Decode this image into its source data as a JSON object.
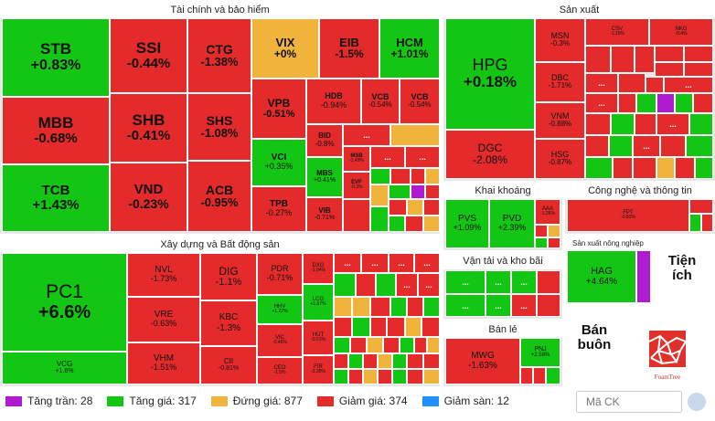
{
  "sectors": {
    "finance": "Tài chính và bảo hiểm",
    "production": "Sản xuất",
    "construction": "Xây dựng và Bất động sản",
    "mining": "Khai khoáng",
    "tech": "Công nghệ và thông tin",
    "agri": "Sản xuất nông nghiệp",
    "transport": "Vận tải và kho bãi",
    "retail": "Bán lẻ",
    "utilities": "Tiện ích",
    "wholesale": "Bán buôn"
  },
  "tiles": {
    "STB": {
      "sym": "STB",
      "pct": "+0.83%"
    },
    "MBB": {
      "sym": "MBB",
      "pct": "-0.68%"
    },
    "TCB": {
      "sym": "TCB",
      "pct": "+1.43%"
    },
    "SSI": {
      "sym": "SSI",
      "pct": "-0.44%"
    },
    "SHB": {
      "sym": "SHB",
      "pct": "-0.41%"
    },
    "VND": {
      "sym": "VND",
      "pct": "-0.23%"
    },
    "CTG": {
      "sym": "CTG",
      "pct": "-1.38%"
    },
    "SHS": {
      "sym": "SHS",
      "pct": "-1.08%"
    },
    "ACB": {
      "sym": "ACB",
      "pct": "-0.95%"
    },
    "VIX": {
      "sym": "VIX",
      "pct": "+0%"
    },
    "EIB": {
      "sym": "EIB",
      "pct": "-1.5%"
    },
    "HCM": {
      "sym": "HCM",
      "pct": "+1.01%"
    },
    "VPB": {
      "sym": "VPB",
      "pct": "-0.51%"
    },
    "HDB": {
      "sym": "HDB",
      "pct": "-0.94%"
    },
    "VCB1": {
      "sym": "VCB",
      "pct": "-0.54%"
    },
    "VCB2": {
      "sym": "VCB",
      "pct": "-0.54%"
    },
    "BID": {
      "sym": "BID",
      "pct": "-0.8%"
    },
    "VCI": {
      "sym": "VCI",
      "pct": "+0.35%"
    },
    "MBS": {
      "sym": "MBS",
      "pct": "+0.41%"
    },
    "MSB": {
      "sym": "MSB",
      "pct": "-1.49%"
    },
    "EVF": {
      "sym": "EVF",
      "pct": "-0.3%"
    },
    "TPB": {
      "sym": "TPB",
      "pct": "-0.27%"
    },
    "VIB": {
      "sym": "VIB",
      "pct": "-0.71%"
    },
    "HPG": {
      "sym": "HPG",
      "pct": "+0.18%"
    },
    "DGC": {
      "sym": "DGC",
      "pct": "-2.08%"
    },
    "MSN": {
      "sym": "MSN",
      "pct": "-0.3%"
    },
    "DBC": {
      "sym": "DBC",
      "pct": "-1.71%"
    },
    "VNM": {
      "sym": "VNM",
      "pct": "-0.88%"
    },
    "HSG": {
      "sym": "HSG",
      "pct": "-0.87%"
    },
    "CSV": {
      "sym": "CSV",
      "pct": "-1.15%"
    },
    "NKG": {
      "sym": "NKG",
      "pct": "-0.4%"
    },
    "PC1": {
      "sym": "PC1",
      "pct": "+6.6%"
    },
    "VCG": {
      "sym": "VCG",
      "pct": "+1.6%"
    },
    "NVL": {
      "sym": "NVL",
      "pct": "-1.73%"
    },
    "VRE": {
      "sym": "VRE",
      "pct": "-0.63%"
    },
    "VHM": {
      "sym": "VHM",
      "pct": "-1.51%"
    },
    "DIG": {
      "sym": "DIG",
      "pct": "-1.1%"
    },
    "KBC": {
      "sym": "KBC",
      "pct": "-1.3%"
    },
    "CII": {
      "sym": "CII",
      "pct": "-0.81%"
    },
    "PDR": {
      "sym": "PDR",
      "pct": "-0.71%"
    },
    "HHV": {
      "sym": "HHV",
      "pct": "+1.22%"
    },
    "VIC": {
      "sym": "VIC",
      "pct": "-0.46%"
    },
    "CEO": {
      "sym": "CEO",
      "pct": "-1.5%"
    },
    "DXG": {
      "sym": "DXG",
      "pct": "-1.04%"
    },
    "LCG": {
      "sym": "LCG",
      "pct": "+1.67%"
    },
    "HUT": {
      "sym": "HUT",
      "pct": "-0.51%"
    },
    "FIR": {
      "sym": "FIR",
      "pct": "-3.38%"
    },
    "PVS": {
      "sym": "PVS",
      "pct": "+1.09%"
    },
    "PVD": {
      "sym": "PVD",
      "pct": "+2.39%"
    },
    "AAA": {
      "sym": "AAA",
      "pct": "-1.26%"
    },
    "FPT": {
      "sym": "FPT",
      "pct": "-0.83%"
    },
    "HAG": {
      "sym": "HAG",
      "pct": "+4.64%"
    },
    "MWG": {
      "sym": "MWG",
      "pct": "-1.63%"
    },
    "PNJ": {
      "sym": "PNJ",
      "pct": "+2.58%"
    }
  },
  "dots": "...",
  "legend": [
    {
      "label": "Tăng trần: 28",
      "color": "#b01ad0"
    },
    {
      "label": "Tăng giá: 317",
      "color": "#14c614"
    },
    {
      "label": "Đứng giá: 877",
      "color": "#f0b43c"
    },
    {
      "label": "Giảm giá: 374",
      "color": "#e42a2a"
    },
    {
      "label": "Giảm sàn: 12",
      "color": "#1e90ff"
    }
  ],
  "search": {
    "placeholder": "Mã CK"
  },
  "foamtree": {
    "caption": "FoamTree"
  }
}
